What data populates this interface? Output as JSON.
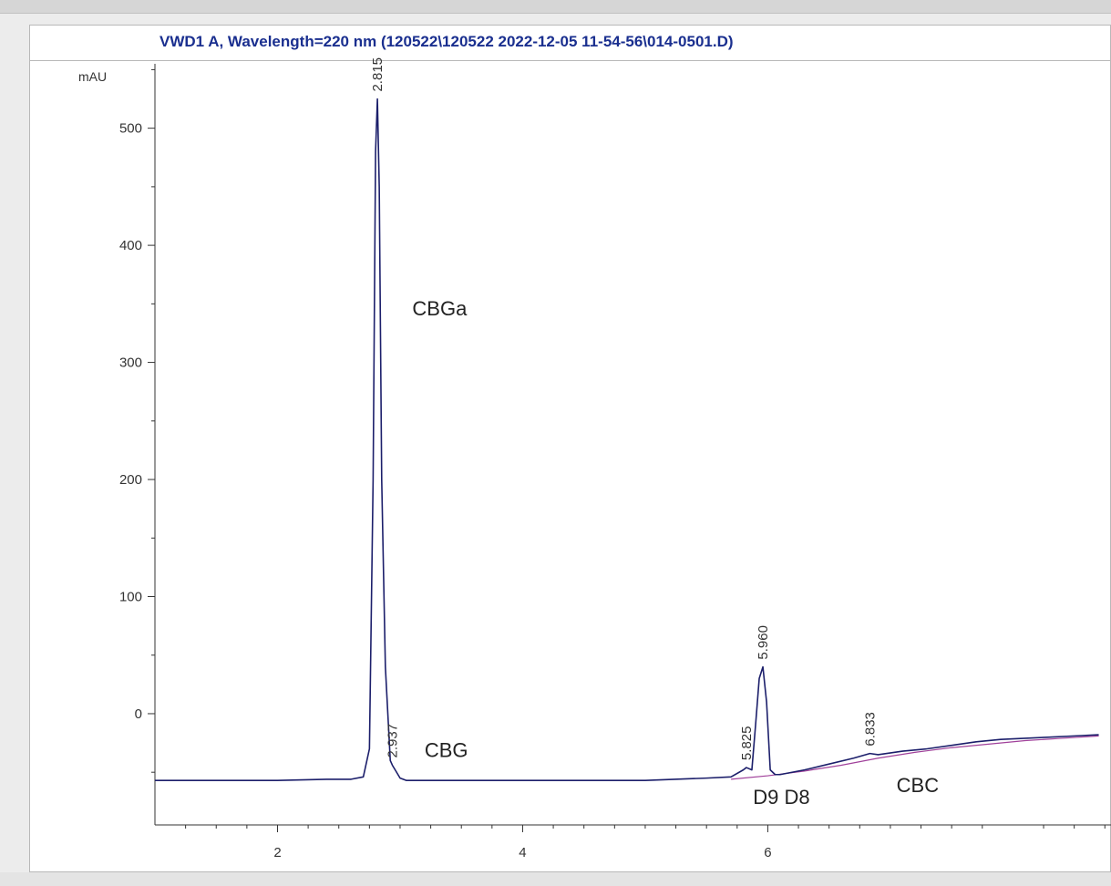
{
  "window": {
    "title": "VWD1 A, Wavelength=220 nm (120522\\120522 2022-12-05 11-54-56\\014-0501.D)"
  },
  "colors": {
    "trace": "#1c1f6b",
    "baseline": "#a0409a",
    "title": "#1a2f8f",
    "axis": "#333333"
  },
  "chart_data": {
    "type": "line",
    "title": "VWD1 A, Wavelength=220 nm (120522\\120522 2022-12-05 11-54-56\\014-0501.D)",
    "ylabel": "mAU",
    "xlabel": "",
    "xlim": [
      1.0,
      8.8
    ],
    "ylim": [
      -95,
      555
    ],
    "xticks": [
      2,
      4,
      6
    ],
    "yticks": [
      0,
      100,
      200,
      300,
      400,
      500
    ],
    "grid": false,
    "series": [
      {
        "x": [
          1.0,
          1.5,
          2.0,
          2.4,
          2.6,
          2.7,
          2.75,
          2.78,
          2.8,
          2.815,
          2.83,
          2.85,
          2.88,
          2.9,
          2.92,
          2.937,
          2.96,
          3.0,
          3.05,
          3.5,
          4.0,
          4.5,
          5.0,
          5.5,
          5.7,
          5.8,
          5.825,
          5.87,
          5.9,
          5.93,
          5.96,
          5.99,
          6.02,
          6.06,
          6.1,
          6.3,
          6.5,
          6.7,
          6.833,
          6.9,
          7.1,
          7.3,
          7.5,
          7.7,
          7.9,
          8.1,
          8.3,
          8.5,
          8.7
        ],
        "values": [
          -57,
          -57,
          -57,
          -56,
          -56,
          -54,
          -30,
          200,
          480,
          525,
          450,
          200,
          40,
          0,
          -40,
          -44,
          -48,
          -55,
          -57,
          -57,
          -57,
          -57,
          -57,
          -55,
          -54,
          -48,
          -46,
          -48,
          -10,
          30,
          40,
          10,
          -48,
          -52,
          -52,
          -48,
          -43,
          -38,
          -34,
          -35,
          -32,
          -30,
          -27,
          -24,
          -22,
          -21,
          -20,
          -19,
          -18
        ]
      }
    ],
    "baseline": {
      "x": [
        5.7,
        6.0,
        6.3,
        6.6,
        6.9,
        7.2,
        7.5,
        7.8,
        8.1,
        8.4,
        8.7
      ],
      "values": [
        -56,
        -53,
        -49,
        -44,
        -38,
        -33,
        -29,
        -26,
        -23,
        -21,
        -19
      ]
    },
    "peak_labels": [
      {
        "x": 2.815,
        "y": 525,
        "label": "2.815"
      },
      {
        "x": 2.937,
        "y": -44,
        "label": "2.937"
      },
      {
        "x": 5.825,
        "y": -46,
        "label": "5.825"
      },
      {
        "x": 5.96,
        "y": 40,
        "label": "5.960"
      },
      {
        "x": 6.833,
        "y": -34,
        "label": "6.833"
      }
    ],
    "annotations": [
      {
        "x": 3.1,
        "y": 340,
        "text": "CBGa"
      },
      {
        "x": 3.2,
        "y": -37,
        "text": "CBG"
      },
      {
        "x": 5.88,
        "y": -77,
        "text": "D9 D8"
      },
      {
        "x": 7.05,
        "y": -67,
        "text": "CBC"
      }
    ]
  }
}
